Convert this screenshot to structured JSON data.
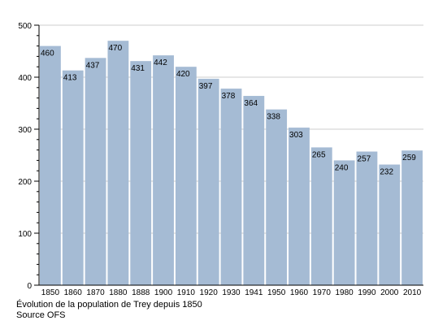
{
  "chart_data": {
    "type": "bar",
    "categories": [
      "1850",
      "1860",
      "1870",
      "1880",
      "1888",
      "1900",
      "1910",
      "1920",
      "1930",
      "1941",
      "1950",
      "1960",
      "1970",
      "1980",
      "1990",
      "2000",
      "2010"
    ],
    "values": [
      460,
      413,
      437,
      470,
      431,
      442,
      420,
      397,
      378,
      364,
      338,
      303,
      265,
      240,
      257,
      232,
      259
    ],
    "ylim": [
      0,
      500
    ],
    "yticks": [
      0,
      100,
      200,
      300,
      400,
      500
    ],
    "grid": "horizontal",
    "bar_color": "#a5bbd4",
    "grid_color": "#cccccc"
  },
  "captions": {
    "line1": "Évolution de la population de Trey depuis 1850",
    "line2": "Source OFS"
  }
}
